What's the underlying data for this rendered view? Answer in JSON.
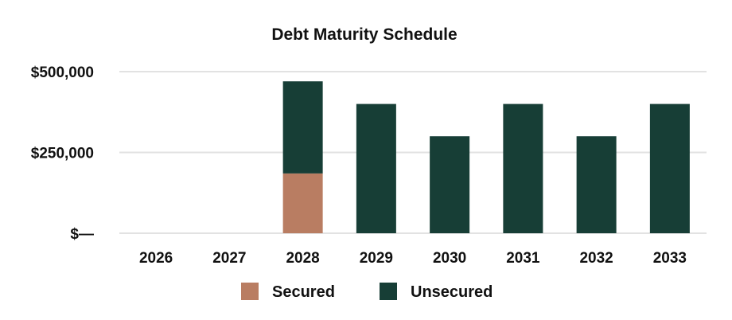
{
  "chart_data": {
    "type": "bar",
    "stacked": true,
    "title": "Debt Maturity Schedule",
    "xlabel": "",
    "ylabel": "",
    "categories": [
      "2026",
      "2027",
      "2028",
      "2029",
      "2030",
      "2031",
      "2032",
      "2033"
    ],
    "series": [
      {
        "name": "Secured",
        "color": "#b97d62",
        "values": [
          0,
          0,
          185000,
          0,
          0,
          0,
          0,
          0
        ]
      },
      {
        "name": "Unsecured",
        "color": "#173e36",
        "values": [
          0,
          0,
          285000,
          400000,
          300000,
          400000,
          300000,
          400000
        ]
      }
    ],
    "ylim": [
      0,
      500000
    ],
    "yticks": [
      {
        "value": 0,
        "label": "$—"
      },
      {
        "value": 250000,
        "label": "$250,000"
      },
      {
        "value": 500000,
        "label": "$500,000"
      }
    ],
    "grid": true,
    "legend_position": "bottom"
  }
}
